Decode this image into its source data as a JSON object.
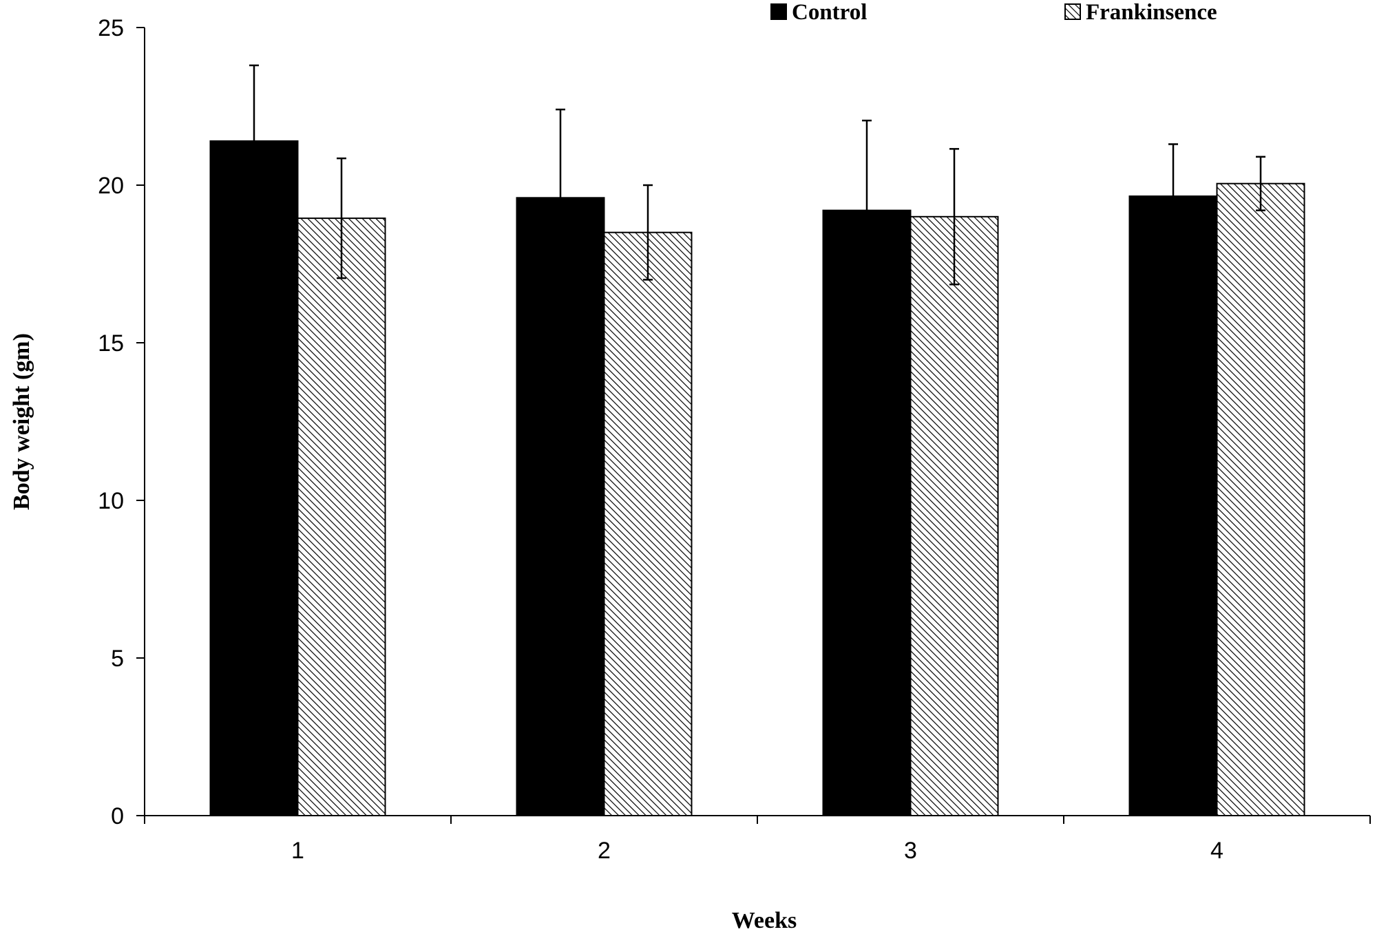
{
  "chart_data": {
    "type": "bar",
    "categories": [
      "1",
      "2",
      "3",
      "4"
    ],
    "series": [
      {
        "name": "Control",
        "values": [
          21.4,
          19.6,
          19.2,
          19.65
        ],
        "errors": [
          2.4,
          2.8,
          2.85,
          1.65
        ],
        "fill": "solid",
        "color": "#000000"
      },
      {
        "name": "Frankinsence",
        "values": [
          18.95,
          18.5,
          19.0,
          20.05
        ],
        "errors": [
          1.9,
          1.5,
          2.15,
          0.85
        ],
        "fill": "hatched",
        "color": "#000000"
      }
    ],
    "xlabel": "Weeks",
    "ylabel": "Body weight (gm)",
    "ylim": [
      0,
      25
    ],
    "yticks": [
      "0",
      "5",
      "10",
      "15",
      "20",
      "25"
    ],
    "grid": false,
    "legend_position": "top"
  }
}
